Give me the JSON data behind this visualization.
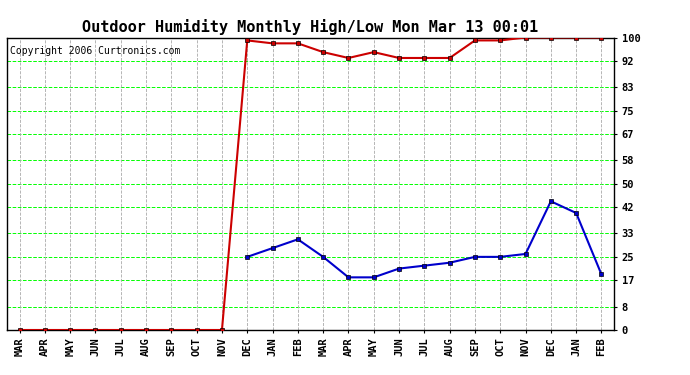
{
  "title": "Outdoor Humidity Monthly High/Low Mon Mar 13 00:01",
  "copyright": "Copyright 2006 Curtronics.com",
  "x_labels": [
    "MAR",
    "APR",
    "MAY",
    "JUN",
    "JUL",
    "AUG",
    "SEP",
    "OCT",
    "NOV",
    "DEC",
    "JAN",
    "FEB",
    "MAR",
    "APR",
    "MAY",
    "JUN",
    "JUL",
    "AUG",
    "SEP",
    "OCT",
    "NOV",
    "DEC",
    "JAN",
    "FEB"
  ],
  "high_values": [
    0,
    0,
    0,
    0,
    0,
    0,
    0,
    0,
    0,
    99,
    98,
    98,
    95,
    93,
    95,
    93,
    93,
    93,
    99,
    99,
    100,
    100,
    100,
    100
  ],
  "low_values": [
    null,
    null,
    null,
    null,
    null,
    null,
    null,
    null,
    null,
    25,
    28,
    31,
    25,
    18,
    18,
    21,
    22,
    23,
    25,
    25,
    26,
    44,
    40,
    19
  ],
  "yticks": [
    0,
    8,
    17,
    25,
    33,
    42,
    50,
    58,
    67,
    75,
    83,
    92,
    100
  ],
  "ylim": [
    0,
    100
  ],
  "bg_color": "#ffffff",
  "plot_bg_color": "#ffffff",
  "grid_color_x": "#aaaaaa",
  "grid_color_y": "#00ff00",
  "high_color": "#cc0000",
  "low_color": "#0000cc",
  "marker": "s",
  "marker_size": 3,
  "title_fontsize": 11,
  "tick_fontsize": 7.5,
  "copyright_fontsize": 7
}
